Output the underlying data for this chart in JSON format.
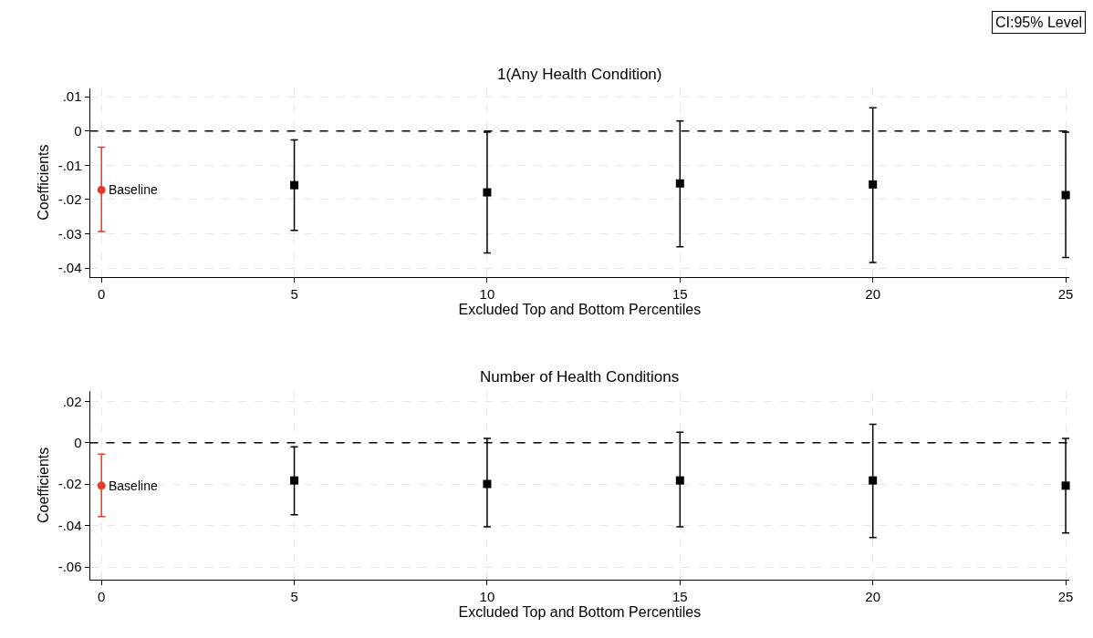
{
  "chart_data": [
    {
      "type": "scatter",
      "title": "1(Any Health Condition)",
      "xlabel": "Excluded Top and Bottom Percentiles",
      "ylabel": "Coefficients",
      "annotations": [
        "CI:95% Level"
      ],
      "xlim": [
        -0.3,
        25.1
      ],
      "xticks": [
        0,
        5,
        10,
        15,
        20,
        25
      ],
      "ylim": [
        -0.0425,
        0.0125
      ],
      "yticks": [
        {
          "value": 0.01,
          "label": ".01"
        },
        0,
        {
          "value": -0.01,
          "label": "-.01"
        },
        {
          "value": -0.02,
          "label": "-.02"
        },
        {
          "value": -0.03,
          "label": "-.03"
        },
        {
          "value": -0.04,
          "label": "-.04"
        }
      ],
      "grid": true,
      "legend": false,
      "ref_lines": [
        {
          "axis": "y",
          "value": 0,
          "color": "#000000",
          "line_style": "dashed"
        }
      ],
      "series": [
        {
          "name": "Baseline",
          "color": "#e8392b",
          "marker": "circle",
          "x": [
            0
          ],
          "values": [
            -0.0172
          ],
          "errors": [
            [
              -0.0293,
              -0.0047
            ]
          ]
        },
        {
          "color": "#000000",
          "marker": "square",
          "x": [
            5,
            10,
            15,
            20,
            25
          ],
          "values": [
            -0.0158,
            -0.0179,
            -0.0153,
            -0.0156,
            -0.0187
          ],
          "errors": [
            [
              -0.029,
              -0.0026
            ],
            [
              -0.0356,
              -0.0003
            ],
            [
              -0.0338,
              0.0029
            ],
            [
              -0.0384,
              0.0068
            ],
            [
              -0.0369,
              -0.0003
            ]
          ]
        }
      ]
    },
    {
      "type": "scatter",
      "title": "Number of Health Conditions",
      "xlabel": "Excluded Top and Bottom Percentiles",
      "ylabel": "Coefficients",
      "xlim": [
        -0.3,
        25.1
      ],
      "xticks": [
        0,
        5,
        10,
        15,
        20,
        25
      ],
      "ylim": [
        -0.066,
        0.025
      ],
      "yticks": [
        {
          "value": 0.02,
          "label": ".02"
        },
        0,
        {
          "value": -0.02,
          "label": "-.02"
        },
        {
          "value": -0.04,
          "label": "-.04"
        },
        {
          "value": -0.06,
          "label": "-.06"
        }
      ],
      "grid": true,
      "legend": false,
      "ref_lines": [
        {
          "axis": "y",
          "value": 0,
          "color": "#000000",
          "line_style": "dashed"
        }
      ],
      "series": [
        {
          "name": "Baseline",
          "color": "#e8392b",
          "marker": "circle",
          "x": [
            0
          ],
          "values": [
            -0.0207
          ],
          "errors": [
            [
              -0.0356,
              -0.0055
            ]
          ]
        },
        {
          "color": "#000000",
          "marker": "square",
          "x": [
            5,
            10,
            15,
            20,
            25
          ],
          "values": [
            -0.0182,
            -0.0199,
            -0.0182,
            -0.0182,
            -0.0207
          ],
          "errors": [
            [
              -0.0347,
              -0.002
            ],
            [
              -0.0406,
              0.0021
            ],
            [
              -0.0406,
              0.0051
            ],
            [
              -0.0457,
              0.0089
            ],
            [
              -0.0436,
              0.0021
            ]
          ]
        }
      ]
    }
  ]
}
